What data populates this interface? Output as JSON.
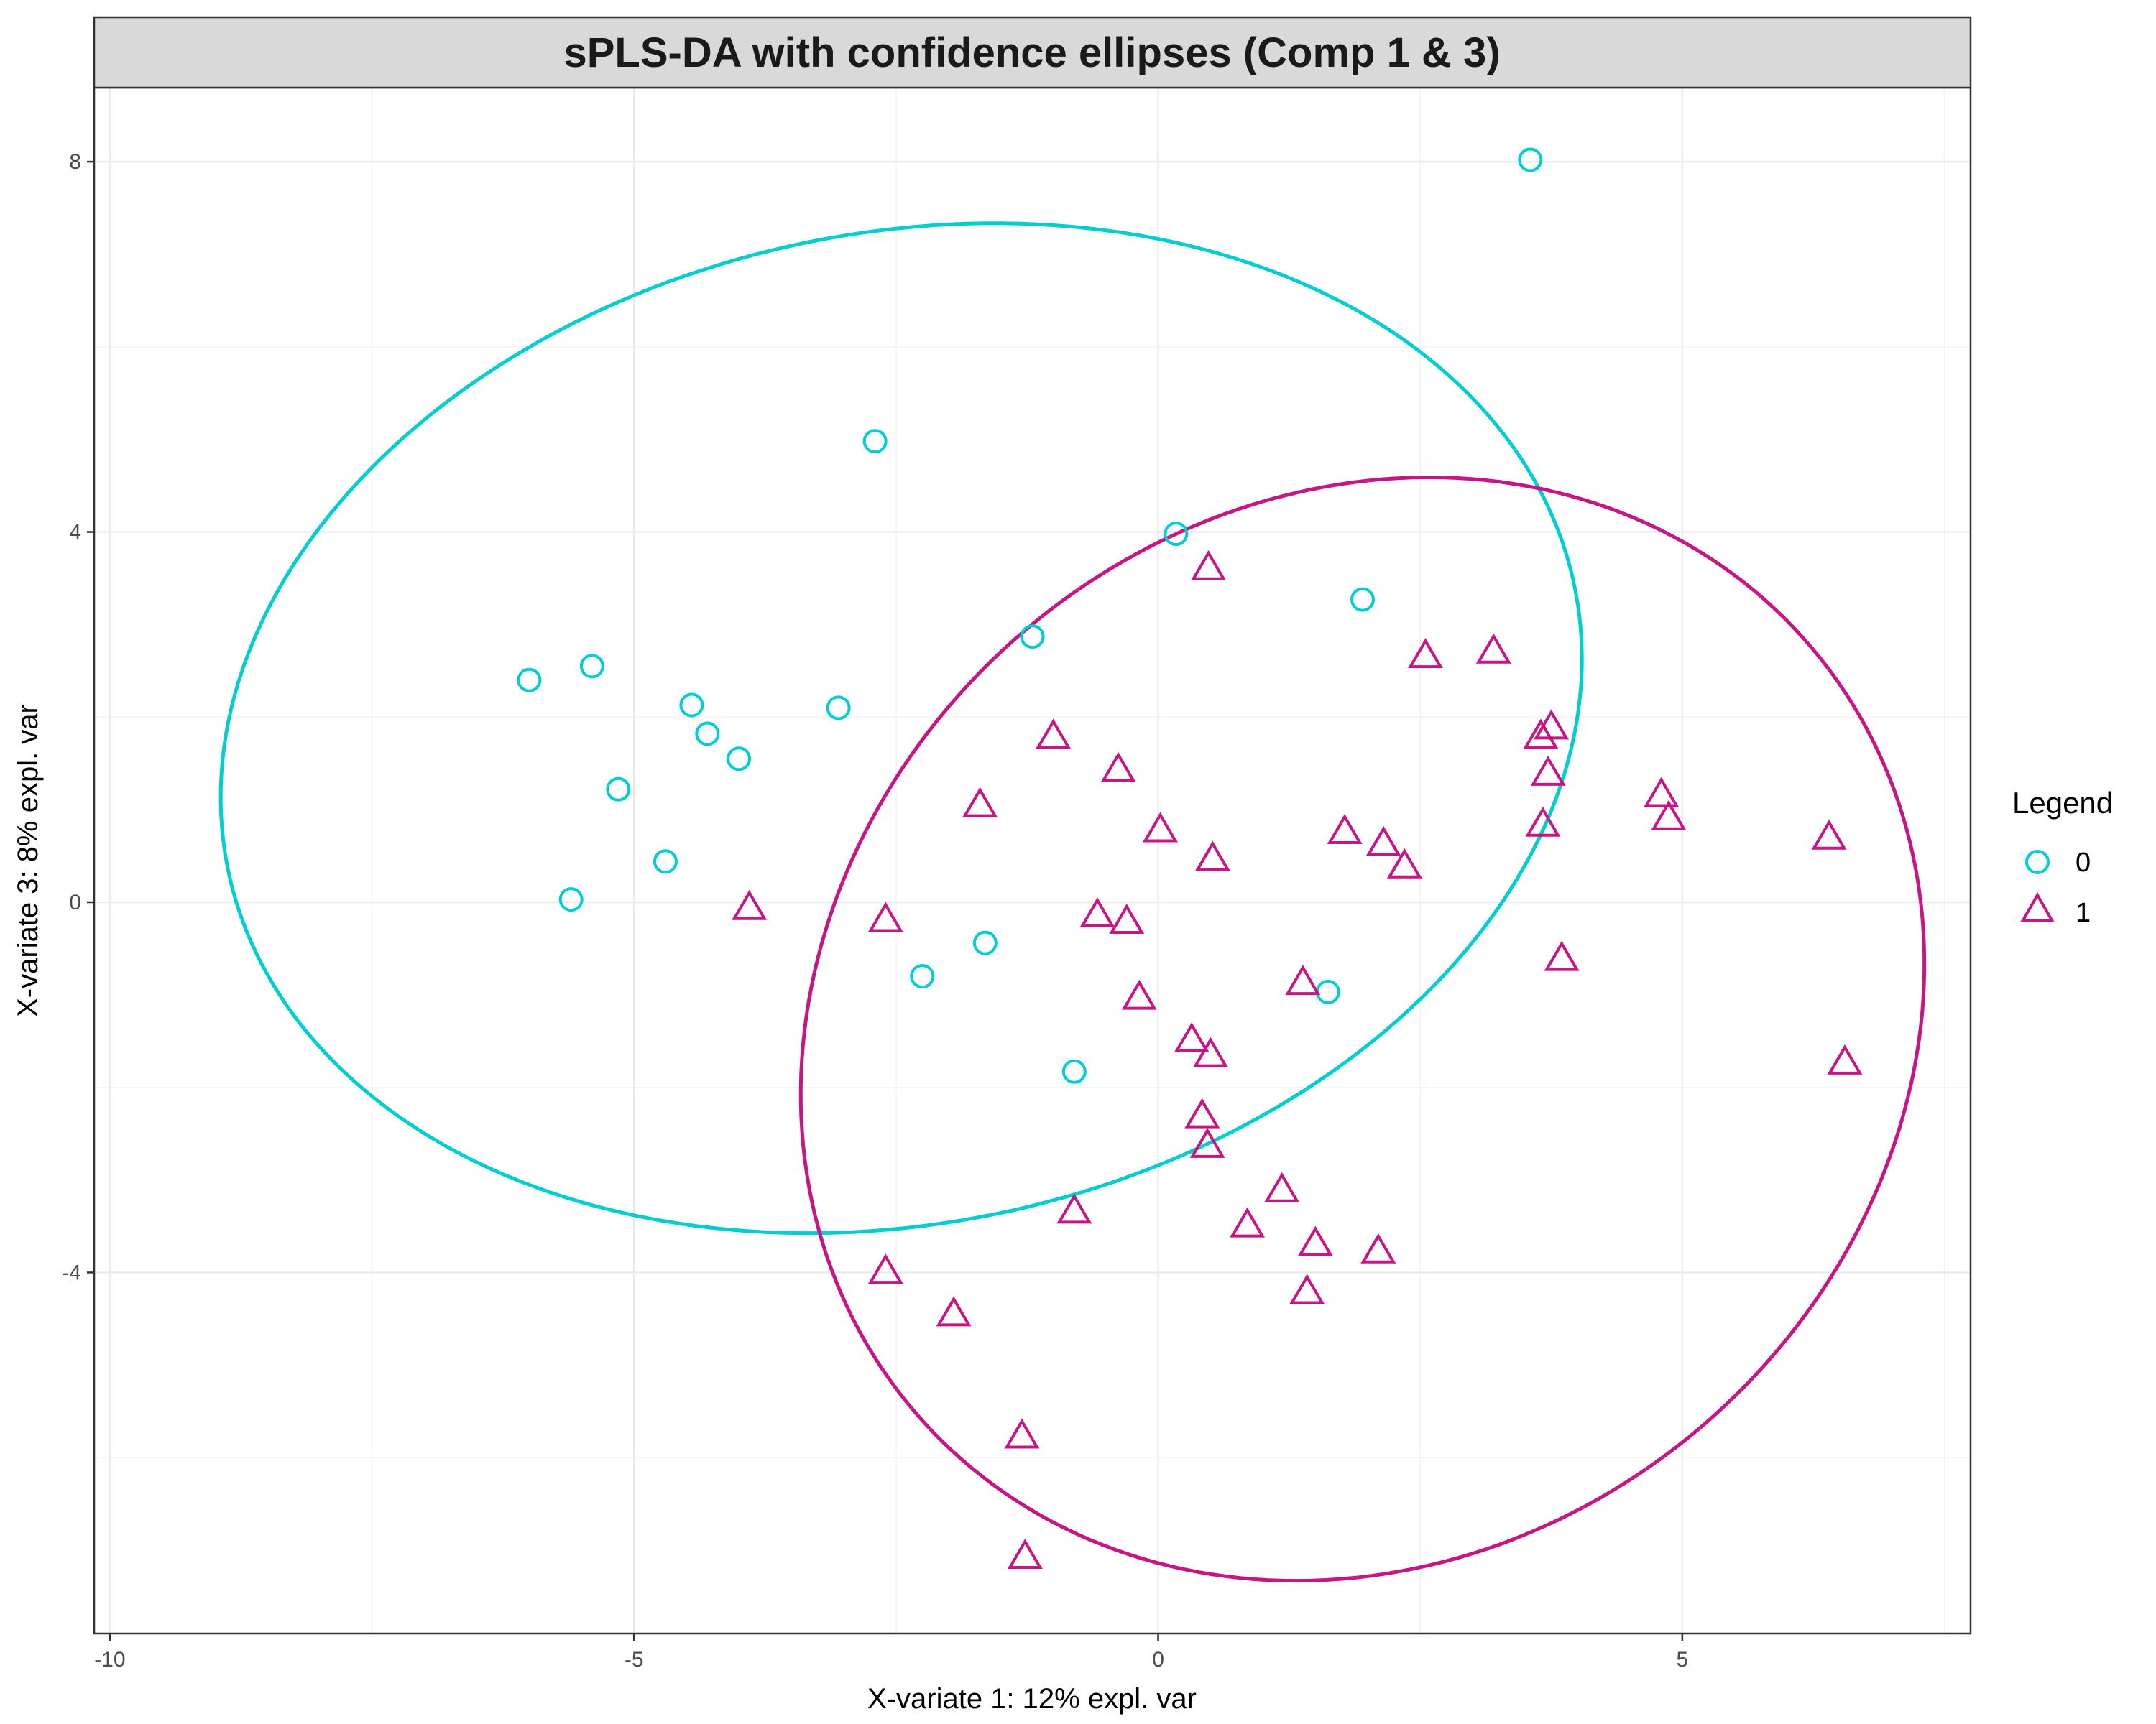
{
  "chart_data": {
    "type": "scatter",
    "title": "sPLS-DA with confidence ellipses (Comp 1 & 3)",
    "xlabel": "X-variate 1: 12% expl. var",
    "ylabel": "X-variate 3: 8% expl. var",
    "xlim": [
      -10.15,
      7.75
    ],
    "ylim": [
      -7.9,
      8.8
    ],
    "x_ticks": [
      -10,
      -5,
      0,
      5
    ],
    "y_ticks": [
      -4,
      0,
      4,
      8
    ],
    "x_tick_labels": [
      "-10",
      "-5",
      "0",
      "5"
    ],
    "y_tick_labels": [
      "-4",
      "0",
      "4",
      "8"
    ],
    "grid": true,
    "legend": {
      "title": "Legend",
      "position": "right"
    },
    "series": [
      {
        "name": "0",
        "color": "#00CED1",
        "marker": "circle",
        "points": [
          [
            3.55,
            8.02
          ],
          [
            -2.7,
            4.98
          ],
          [
            0.17,
            3.98
          ],
          [
            1.95,
            3.27
          ],
          [
            -1.2,
            2.87
          ],
          [
            -6.0,
            2.4
          ],
          [
            -5.4,
            2.55
          ],
          [
            -4.45,
            2.13
          ],
          [
            -4.3,
            1.82
          ],
          [
            -3.05,
            2.1
          ],
          [
            -4.0,
            1.55
          ],
          [
            -5.15,
            1.22
          ],
          [
            -4.7,
            0.44
          ],
          [
            -5.6,
            0.03
          ],
          [
            -1.65,
            -0.44
          ],
          [
            -2.25,
            -0.8
          ],
          [
            1.62,
            -0.97
          ],
          [
            -0.8,
            -1.83
          ]
        ],
        "ellipse": {
          "cx": -2.45,
          "cy": 1.88,
          "rx": 6.62,
          "ry": 5.3,
          "angle_deg": 19
        }
      },
      {
        "name": "1",
        "color": "#C71585",
        "marker": "triangle",
        "points": [
          [
            0.48,
            3.6
          ],
          [
            3.2,
            2.7
          ],
          [
            2.55,
            2.65
          ],
          [
            3.75,
            1.88
          ],
          [
            3.65,
            1.78
          ],
          [
            -1.0,
            1.78
          ],
          [
            -0.38,
            1.42
          ],
          [
            3.72,
            1.38
          ],
          [
            4.8,
            1.15
          ],
          [
            -1.7,
            1.04
          ],
          [
            4.87,
            0.9
          ],
          [
            3.67,
            0.83
          ],
          [
            0.02,
            0.77
          ],
          [
            1.78,
            0.75
          ],
          [
            2.15,
            0.62
          ],
          [
            6.4,
            0.69
          ],
          [
            0.52,
            0.46
          ],
          [
            2.35,
            0.38
          ],
          [
            -3.9,
            -0.07
          ],
          [
            -2.6,
            -0.2
          ],
          [
            -0.58,
            -0.15
          ],
          [
            -0.3,
            -0.22
          ],
          [
            3.85,
            -0.62
          ],
          [
            1.38,
            -0.88
          ],
          [
            -0.18,
            -1.04
          ],
          [
            0.32,
            -1.5
          ],
          [
            0.5,
            -1.66
          ],
          [
            6.55,
            -1.74
          ],
          [
            0.42,
            -2.32
          ],
          [
            0.47,
            -2.64
          ],
          [
            1.18,
            -3.12
          ],
          [
            -0.8,
            -3.35
          ],
          [
            0.85,
            -3.5
          ],
          [
            1.5,
            -3.7
          ],
          [
            2.1,
            -3.78
          ],
          [
            -2.6,
            -4.0
          ],
          [
            1.42,
            -4.22
          ],
          [
            -1.95,
            -4.46
          ],
          [
            -1.3,
            -5.78
          ],
          [
            -1.27,
            -7.08
          ]
        ],
        "ellipse": {
          "cx": 1.95,
          "cy": -1.37,
          "rx": 6.1,
          "ry": 5.2,
          "angle_deg": 66
        }
      }
    ]
  }
}
